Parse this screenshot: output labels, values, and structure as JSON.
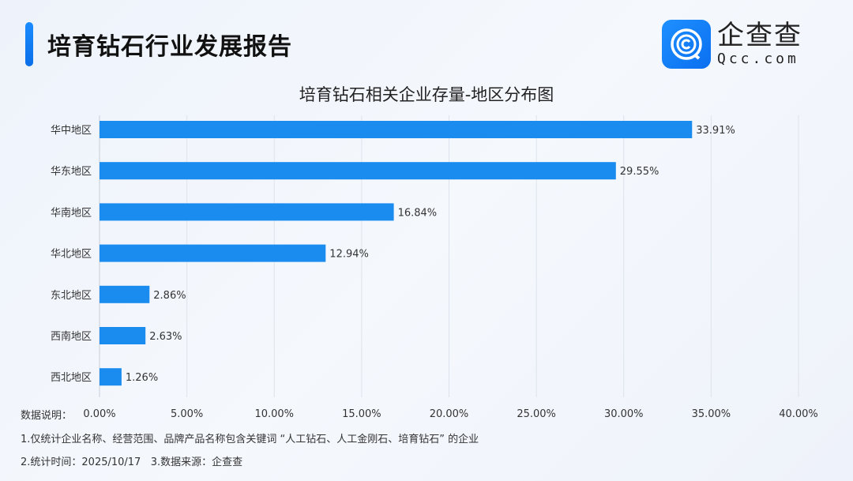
{
  "header": {
    "title": "培育钻石行业发展报告",
    "logo_cn": "企查查",
    "logo_en": "Qcc.com"
  },
  "chart_data": {
    "type": "bar",
    "orientation": "horizontal",
    "title": "培育钻石相关企业存量-地区分布图",
    "categories": [
      "华中地区",
      "华东地区",
      "华南地区",
      "华北地区",
      "东北地区",
      "西南地区",
      "西北地区"
    ],
    "values": [
      33.91,
      29.55,
      16.84,
      12.94,
      2.86,
      2.63,
      1.26
    ],
    "value_labels": [
      "33.91%",
      "29.55%",
      "16.84%",
      "12.94%",
      "2.86%",
      "2.63%",
      "1.26%"
    ],
    "xlim": [
      0,
      40
    ],
    "xticks": [
      "0.00%",
      "5.00%",
      "10.00%",
      "15.00%",
      "20.00%",
      "25.00%",
      "30.00%",
      "35.00%",
      "40.00%"
    ],
    "grid": true,
    "bar_color": "#1a8cf0"
  },
  "notes": {
    "label": "数据说明：",
    "line1": "1.仅统计企业名称、经营范围、品牌产品名称包含关键词 “人工钻石、人工金刚石、培育钻石” 的企业",
    "line2": "2.统计时间：2025/10/17   3.数据来源：企查查"
  }
}
